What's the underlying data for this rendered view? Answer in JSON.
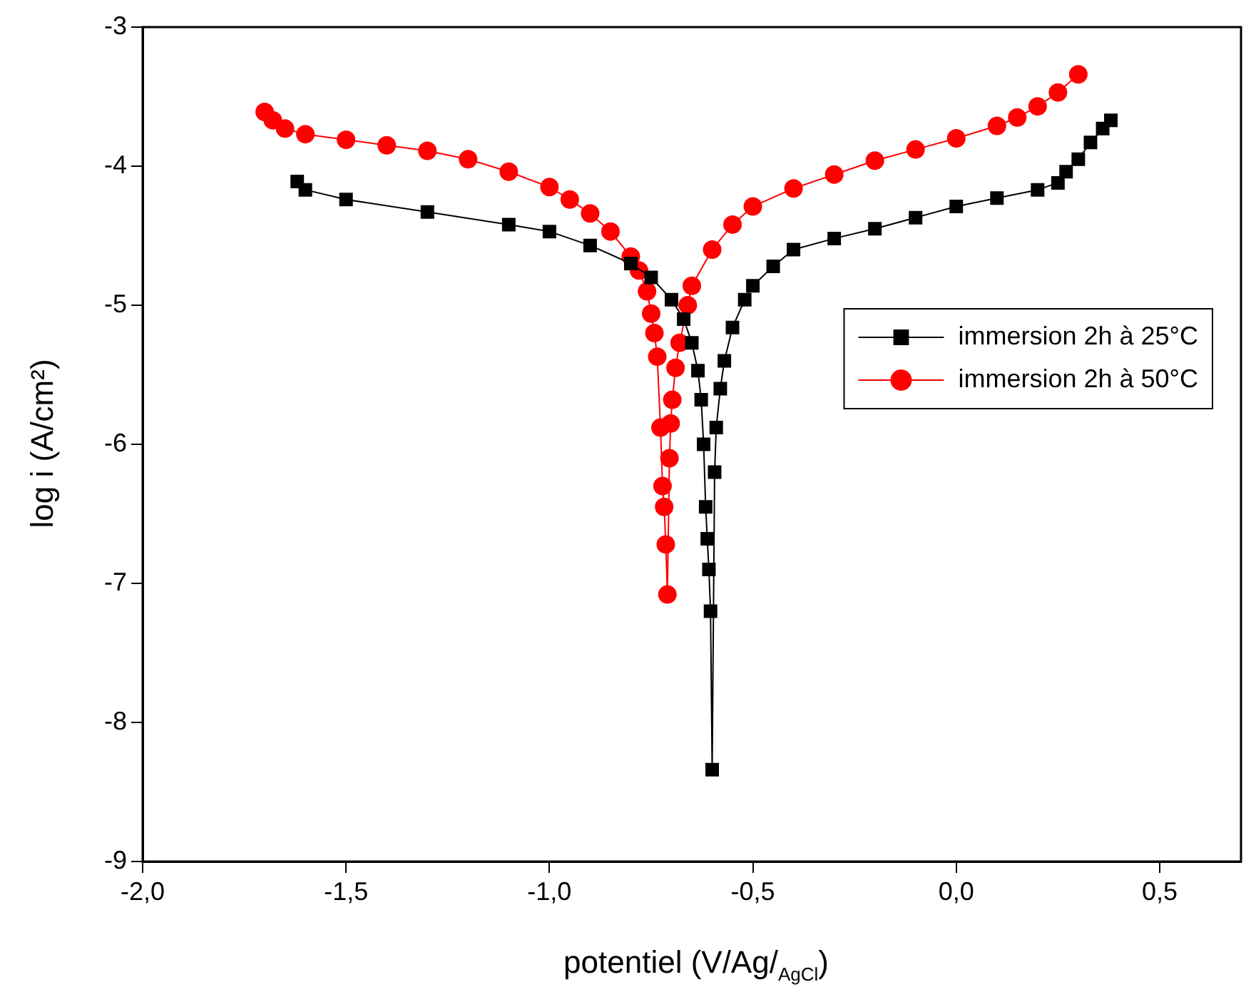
{
  "chart_data": {
    "type": "line",
    "xlabel": "potentiel (V/Ag/$_{AgCl}$)",
    "ylabel": "log i (A/cm²)",
    "xlim": [
      -2,
      0.7
    ],
    "xticks": [
      {
        "value": -2,
        "label": "-2,0"
      },
      {
        "value": -1.5,
        "label": "-1,5"
      },
      {
        "value": -1,
        "label": "-1,0"
      },
      {
        "value": -0.5,
        "label": "-0,5"
      },
      {
        "value": 0,
        "label": "0,0"
      },
      {
        "value": 0.5,
        "label": "0,5"
      }
    ],
    "ylim": [
      -9,
      -3
    ],
    "yticks": [
      -9,
      -8,
      -7,
      -6,
      -5,
      -4,
      -3
    ],
    "grid": false,
    "legend": "right",
    "line_style": "solid",
    "series": [
      {
        "name": "immersion 2h à 25°C",
        "color": "#000000",
        "marker": "square",
        "x": [
          -1.62,
          -1.6,
          -1.5,
          -1.3,
          -1.1,
          -1.0,
          -0.9,
          -0.8,
          -0.75,
          -0.7,
          -0.67,
          -0.65,
          -0.635,
          -0.627,
          -0.621,
          -0.616,
          -0.612,
          -0.608,
          -0.604,
          -0.6,
          -0.594,
          -0.59,
          -0.58,
          -0.57,
          -0.55,
          -0.52,
          -0.5,
          -0.45,
          -0.4,
          -0.3,
          -0.2,
          -0.1,
          0.0,
          0.1,
          0.2,
          0.25,
          0.27,
          0.3,
          0.33,
          0.36,
          0.38
        ],
        "values": [
          -4.11,
          -4.17,
          -4.24,
          -4.33,
          -4.42,
          -4.47,
          -4.57,
          -4.7,
          -4.8,
          -4.96,
          -5.1,
          -5.27,
          -5.47,
          -5.68,
          -6.0,
          -6.45,
          -6.68,
          -6.9,
          -7.2,
          -8.34,
          -6.2,
          -5.88,
          -5.6,
          -5.4,
          -5.16,
          -4.96,
          -4.86,
          -4.72,
          -4.6,
          -4.52,
          -4.45,
          -4.37,
          -4.29,
          -4.23,
          -4.17,
          -4.12,
          -4.04,
          -3.95,
          -3.83,
          -3.73,
          -3.67
        ]
      },
      {
        "name": "immersion 2h à 50°C",
        "color": "#ff0000",
        "marker": "circle",
        "x": [
          -1.7,
          -1.68,
          -1.65,
          -1.6,
          -1.5,
          -1.4,
          -1.3,
          -1.2,
          -1.1,
          -1.0,
          -0.95,
          -0.9,
          -0.85,
          -0.8,
          -0.78,
          -0.76,
          -0.75,
          -0.742,
          -0.735,
          -0.727,
          -0.722,
          -0.718,
          -0.714,
          -0.71,
          -0.705,
          -0.702,
          -0.698,
          -0.69,
          -0.68,
          -0.66,
          -0.65,
          -0.6,
          -0.55,
          -0.5,
          -0.4,
          -0.3,
          -0.2,
          -0.1,
          0.0,
          0.1,
          0.15,
          0.2,
          0.25,
          0.3
        ],
        "values": [
          -3.61,
          -3.67,
          -3.73,
          -3.77,
          -3.81,
          -3.85,
          -3.89,
          -3.95,
          -4.04,
          -4.15,
          -4.24,
          -4.34,
          -4.47,
          -4.65,
          -4.75,
          -4.9,
          -5.06,
          -5.2,
          -5.37,
          -5.88,
          -6.3,
          -6.45,
          -6.72,
          -7.08,
          -6.1,
          -5.85,
          -5.68,
          -5.45,
          -5.27,
          -5.0,
          -4.86,
          -4.6,
          -4.42,
          -4.29,
          -4.16,
          -4.06,
          -3.96,
          -3.88,
          -3.8,
          -3.71,
          -3.65,
          -3.57,
          -3.47,
          -3.34
        ]
      }
    ]
  }
}
